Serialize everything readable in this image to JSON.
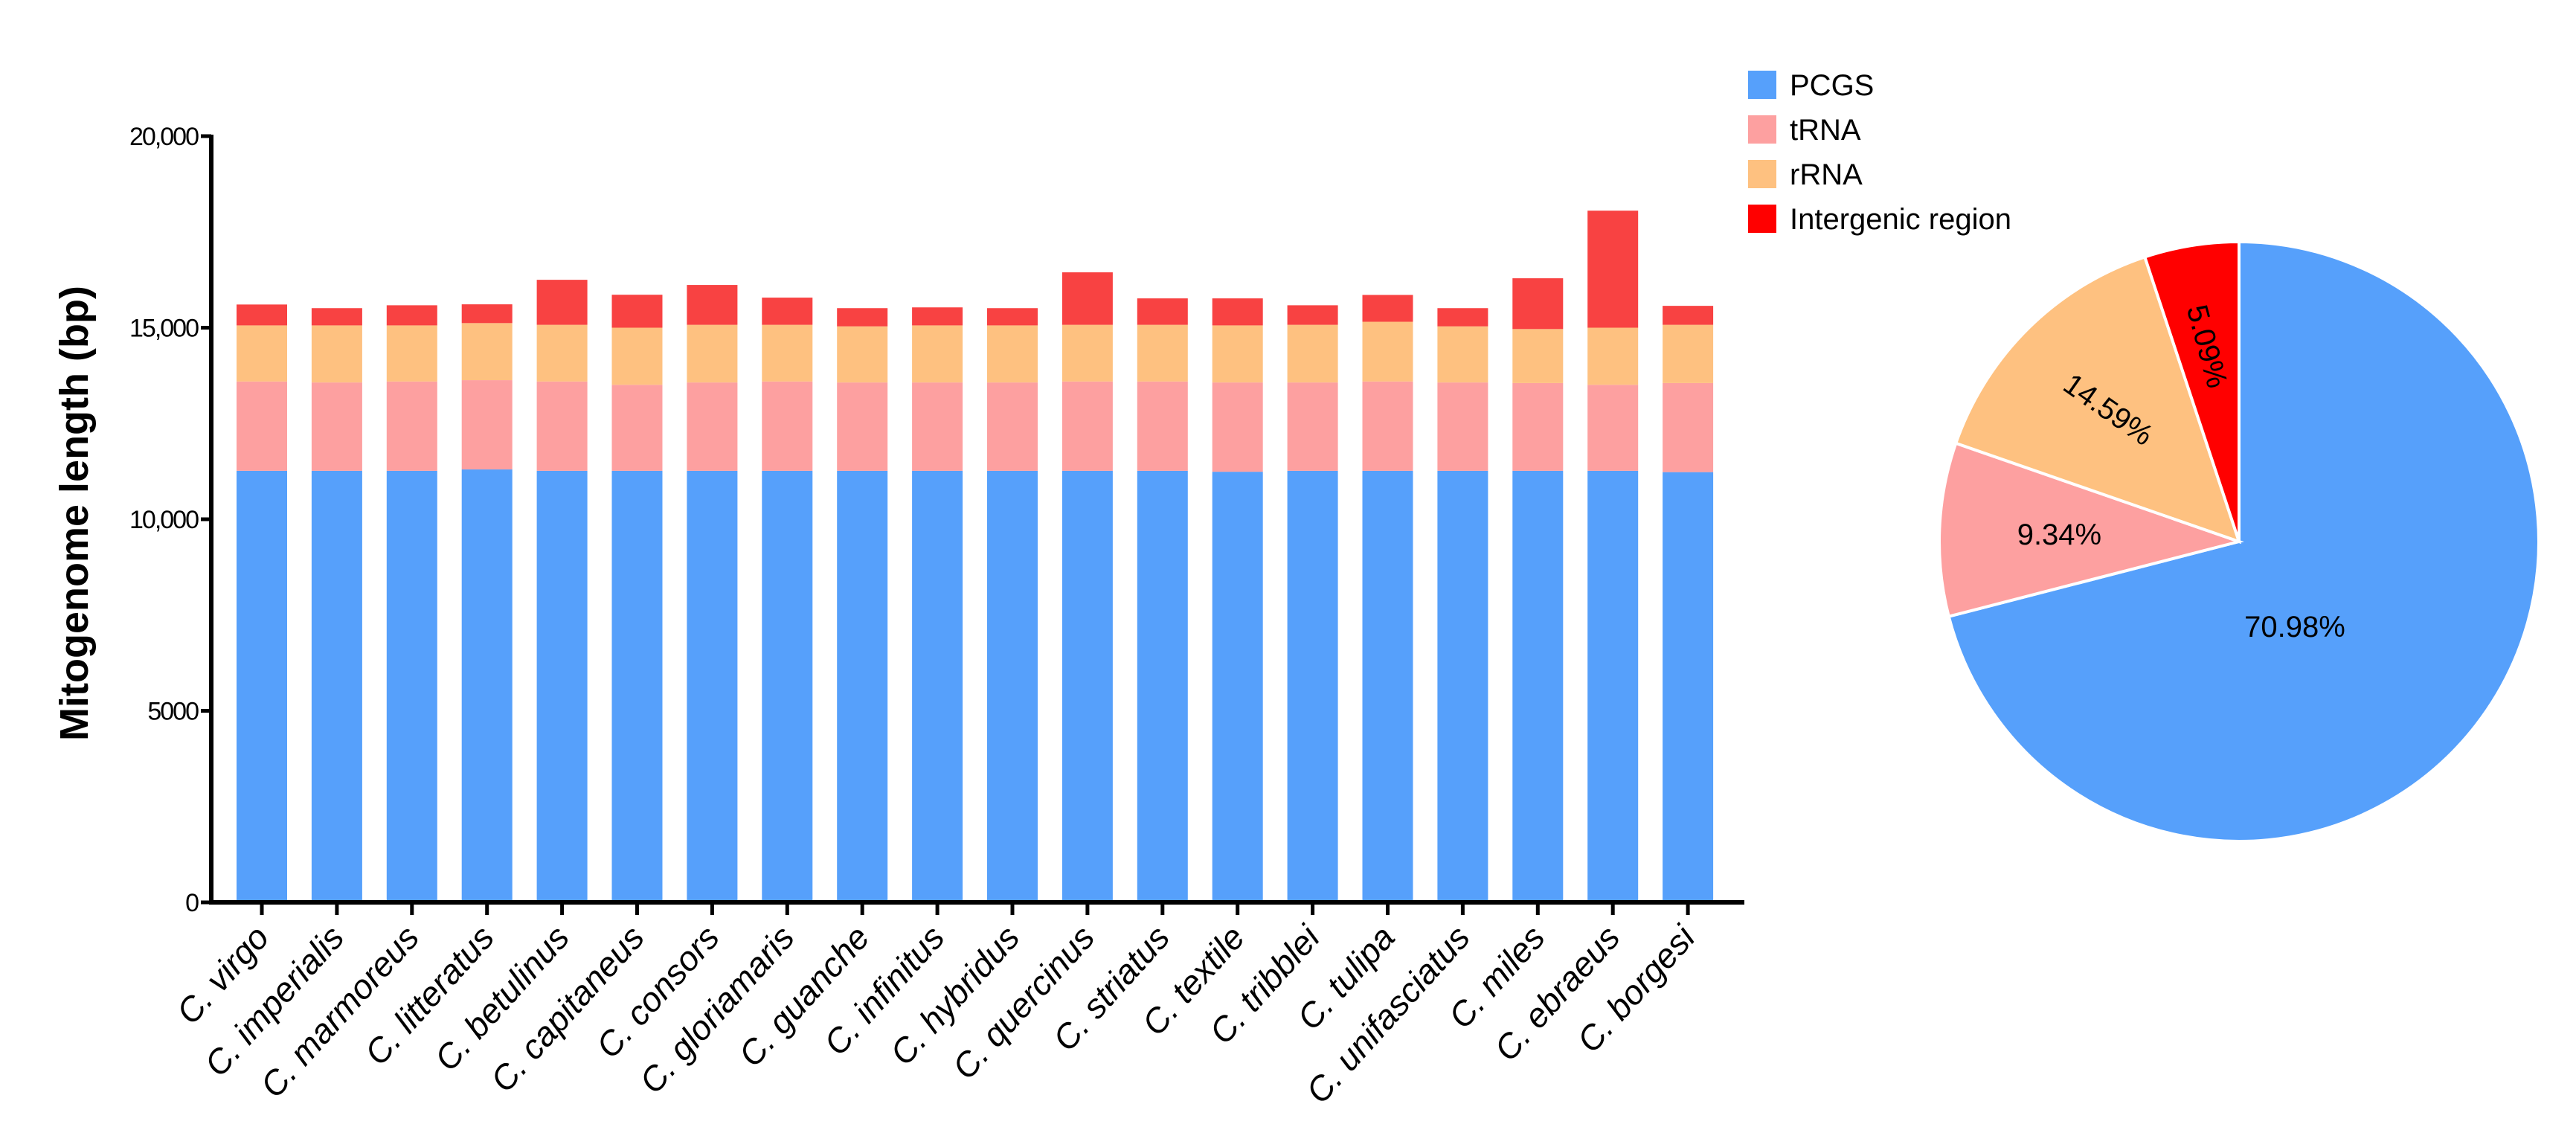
{
  "chart_data": [
    {
      "type": "bar",
      "stacked": true,
      "title": "",
      "xlabel": "",
      "ylabel": "Mitogenome length (bp)",
      "ylim": [
        0,
        20000
      ],
      "yticks": [
        0,
        5000,
        10000,
        15000,
        20000
      ],
      "ytick_labels": [
        "0",
        "5000",
        "10,000",
        "15,000",
        "20,000"
      ],
      "grid": false,
      "categories": [
        "C. virgo",
        "C. imperialis",
        "C. marmoreus",
        "C. litteratus",
        "C. betulinus",
        "C. capitaneus",
        "C. consors",
        "C. gloriamaris",
        "C. guanche",
        "C. infinitus",
        "C. hybridus",
        "C. quercinus",
        "C. striatus",
        "C. textile",
        "C. tribblei",
        "C. tulipa",
        "C. unifasciatus",
        "C. miles",
        "C. ebraeus",
        "C. borgesi"
      ],
      "series": [
        {
          "name": "PCGS",
          "color": "#56a0fb",
          "values": [
            11265,
            11265,
            11265,
            11300,
            11265,
            11265,
            11265,
            11265,
            11265,
            11265,
            11265,
            11265,
            11265,
            11240,
            11265,
            11265,
            11265,
            11265,
            11265,
            11230
          ]
        },
        {
          "name": "tRNA",
          "color": "#fda0a0",
          "values": [
            2330,
            2305,
            2330,
            2330,
            2330,
            2245,
            2305,
            2330,
            2305,
            2305,
            2305,
            2330,
            2330,
            2330,
            2305,
            2330,
            2305,
            2290,
            2245,
            2325
          ]
        },
        {
          "name": "rRNA",
          "color": "#fec180",
          "values": [
            1465,
            1490,
            1465,
            1490,
            1480,
            1490,
            1505,
            1480,
            1465,
            1490,
            1490,
            1480,
            1480,
            1490,
            1505,
            1560,
            1465,
            1410,
            1490,
            1520
          ]
        },
        {
          "name": "Intergenic region",
          "color": "#f84242",
          "values": [
            545,
            450,
            525,
            490,
            1175,
            860,
            1040,
            710,
            475,
            470,
            450,
            1370,
            690,
            705,
            510,
            700,
            475,
            1325,
            3055,
            495
          ]
        }
      ]
    },
    {
      "type": "pie",
      "title": "",
      "legend_position": "top-left",
      "labels": [
        "PCGS",
        "tRNA",
        "rRNA",
        "Intergenic region"
      ],
      "values": [
        70.98,
        9.34,
        14.59,
        5.09
      ],
      "value_labels": [
        "70.98%",
        "9.34%",
        "14.59%",
        "5.09%"
      ],
      "colors": [
        "#56a0fb",
        "#fda0a0",
        "#fec180",
        "#ff0000"
      ]
    }
  ]
}
